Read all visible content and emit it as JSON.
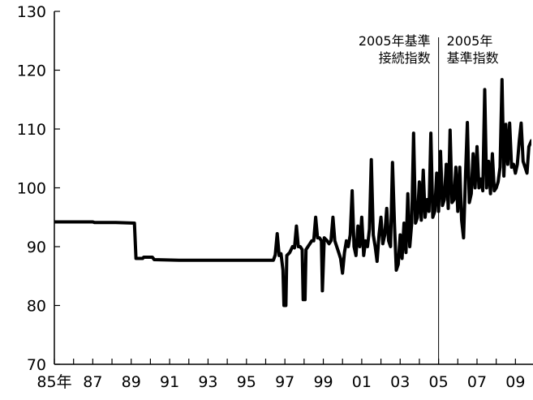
{
  "chart_data": {
    "type": "line",
    "title": "",
    "ylabel": "",
    "xlabel": "",
    "ylim": [
      70,
      130
    ],
    "yticks": [
      70,
      80,
      90,
      100,
      110,
      120,
      130
    ],
    "xlim": [
      1985,
      2009.83
    ],
    "xtick_labels": [
      {
        "x": 1985,
        "label": "85年"
      },
      {
        "x": 1987,
        "label": "87"
      },
      {
        "x": 1989,
        "label": "89"
      },
      {
        "x": 1991,
        "label": "91"
      },
      {
        "x": 1993,
        "label": "93"
      },
      {
        "x": 1995,
        "label": "95"
      },
      {
        "x": 1997,
        "label": "97"
      },
      {
        "x": 1999,
        "label": "99"
      },
      {
        "x": 2001,
        "label": "01"
      },
      {
        "x": 2003,
        "label": "03"
      },
      {
        "x": 2005,
        "label": "05"
      },
      {
        "x": 2007,
        "label": "07"
      },
      {
        "x": 2009,
        "label": "09"
      }
    ],
    "grid": false,
    "divider_x": 2005.0,
    "annotations": [
      {
        "lines": [
          "2005年基準",
          "接続指数"
        ],
        "position": "left-of-divider"
      },
      {
        "lines": [
          "2005年",
          "基準指数"
        ],
        "position": "right-of-divider"
      }
    ],
    "series": [
      {
        "color": "#000000",
        "points": [
          [
            1985.0,
            94.2
          ],
          [
            1987.0,
            94.2
          ],
          [
            1987.1,
            94.1
          ],
          [
            1988.2,
            94.1
          ],
          [
            1989.17,
            94.0
          ],
          [
            1989.25,
            88.0
          ],
          [
            1989.6,
            88.0
          ],
          [
            1989.65,
            88.2
          ],
          [
            1990.1,
            88.2
          ],
          [
            1990.2,
            87.8
          ],
          [
            1991.5,
            87.7
          ],
          [
            1993.0,
            87.7
          ],
          [
            1995.0,
            87.7
          ],
          [
            1996.4,
            87.7
          ],
          [
            1996.5,
            88.6
          ],
          [
            1996.6,
            92.2
          ],
          [
            1996.7,
            88.5
          ],
          [
            1996.8,
            88.8
          ],
          [
            1996.9,
            86.0
          ],
          [
            1996.95,
            80.0
          ],
          [
            1997.05,
            80.0
          ],
          [
            1997.1,
            88.5
          ],
          [
            1997.25,
            89.0
          ],
          [
            1997.4,
            90.0
          ],
          [
            1997.5,
            89.8
          ],
          [
            1997.6,
            93.5
          ],
          [
            1997.7,
            90.0
          ],
          [
            1997.8,
            90.0
          ],
          [
            1997.9,
            89.5
          ],
          [
            1997.95,
            81.0
          ],
          [
            1998.05,
            81.0
          ],
          [
            1998.1,
            89.5
          ],
          [
            1998.3,
            90.5
          ],
          [
            1998.4,
            91.0
          ],
          [
            1998.5,
            91.0
          ],
          [
            1998.6,
            95.0
          ],
          [
            1998.7,
            91.5
          ],
          [
            1998.8,
            91.5
          ],
          [
            1998.9,
            91.0
          ],
          [
            1998.95,
            82.5
          ],
          [
            1999.05,
            91.5
          ],
          [
            1999.2,
            91.0
          ],
          [
            1999.3,
            90.5
          ],
          [
            1999.4,
            91.0
          ],
          [
            1999.5,
            95.0
          ],
          [
            1999.6,
            91.0
          ],
          [
            1999.7,
            90.0
          ],
          [
            1999.8,
            89.0
          ],
          [
            1999.9,
            88.0
          ],
          [
            2000.0,
            85.5
          ],
          [
            2000.1,
            89.0
          ],
          [
            2000.2,
            91.0
          ],
          [
            2000.3,
            90.0
          ],
          [
            2000.4,
            92.0
          ],
          [
            2000.5,
            99.5
          ],
          [
            2000.6,
            90.0
          ],
          [
            2000.7,
            88.5
          ],
          [
            2000.8,
            93.5
          ],
          [
            2000.9,
            90.0
          ],
          [
            2001.0,
            95.0
          ],
          [
            2001.1,
            88.5
          ],
          [
            2001.2,
            91.0
          ],
          [
            2001.3,
            90.0
          ],
          [
            2001.4,
            93.0
          ],
          [
            2001.5,
            104.8
          ],
          [
            2001.6,
            92.0
          ],
          [
            2001.7,
            90.0
          ],
          [
            2001.8,
            87.5
          ],
          [
            2001.9,
            92.0
          ],
          [
            2002.0,
            95.0
          ],
          [
            2002.1,
            90.5
          ],
          [
            2002.2,
            92.0
          ],
          [
            2002.3,
            96.5
          ],
          [
            2002.4,
            91.0
          ],
          [
            2002.5,
            90.0
          ],
          [
            2002.6,
            104.3
          ],
          [
            2002.7,
            94.0
          ],
          [
            2002.8,
            86.0
          ],
          [
            2002.9,
            87.0
          ],
          [
            2003.0,
            92.0
          ],
          [
            2003.1,
            88.0
          ],
          [
            2003.2,
            94.0
          ],
          [
            2003.3,
            89.0
          ],
          [
            2003.4,
            99.0
          ],
          [
            2003.5,
            90.0
          ],
          [
            2003.6,
            94.0
          ],
          [
            2003.7,
            109.3
          ],
          [
            2003.8,
            94.0
          ],
          [
            2003.9,
            95.0
          ],
          [
            2004.0,
            101.0
          ],
          [
            2004.1,
            94.5
          ],
          [
            2004.2,
            103.0
          ],
          [
            2004.3,
            95.0
          ],
          [
            2004.4,
            98.0
          ],
          [
            2004.5,
            96.0
          ],
          [
            2004.6,
            109.3
          ],
          [
            2004.7,
            95.0
          ],
          [
            2004.8,
            96.0
          ],
          [
            2004.9,
            102.5
          ],
          [
            2005.0,
            96.0
          ],
          [
            2005.1,
            106.2
          ],
          [
            2005.2,
            97.0
          ],
          [
            2005.3,
            98.0
          ],
          [
            2005.4,
            104.0
          ],
          [
            2005.5,
            96.5
          ],
          [
            2005.6,
            109.8
          ],
          [
            2005.7,
            97.5
          ],
          [
            2005.8,
            98.0
          ],
          [
            2005.9,
            103.5
          ],
          [
            2006.0,
            96.0
          ],
          [
            2006.1,
            103.5
          ],
          [
            2006.2,
            94.5
          ],
          [
            2006.3,
            91.5
          ],
          [
            2006.4,
            102.0
          ],
          [
            2006.5,
            111.1
          ],
          [
            2006.6,
            97.5
          ],
          [
            2006.7,
            99.0
          ],
          [
            2006.8,
            105.8
          ],
          [
            2006.9,
            100.0
          ],
          [
            2007.0,
            107.0
          ],
          [
            2007.1,
            100.0
          ],
          [
            2007.2,
            101.5
          ],
          [
            2007.3,
            99.5
          ],
          [
            2007.4,
            116.7
          ],
          [
            2007.5,
            100.0
          ],
          [
            2007.6,
            104.5
          ],
          [
            2007.7,
            99.0
          ],
          [
            2007.8,
            105.8
          ],
          [
            2007.9,
            99.5
          ],
          [
            2008.0,
            100.0
          ],
          [
            2008.1,
            101.0
          ],
          [
            2008.2,
            103.5
          ],
          [
            2008.3,
            118.4
          ],
          [
            2008.4,
            102.0
          ],
          [
            2008.5,
            110.8
          ],
          [
            2008.6,
            104.0
          ],
          [
            2008.7,
            111.0
          ],
          [
            2008.8,
            103.5
          ],
          [
            2008.9,
            104.0
          ],
          [
            2009.0,
            102.5
          ],
          [
            2009.1,
            104.0
          ],
          [
            2009.2,
            108.0
          ],
          [
            2009.3,
            111.0
          ],
          [
            2009.4,
            104.5
          ],
          [
            2009.5,
            103.5
          ],
          [
            2009.6,
            102.5
          ],
          [
            2009.7,
            107.0
          ],
          [
            2009.83,
            108.0
          ]
        ]
      }
    ]
  }
}
